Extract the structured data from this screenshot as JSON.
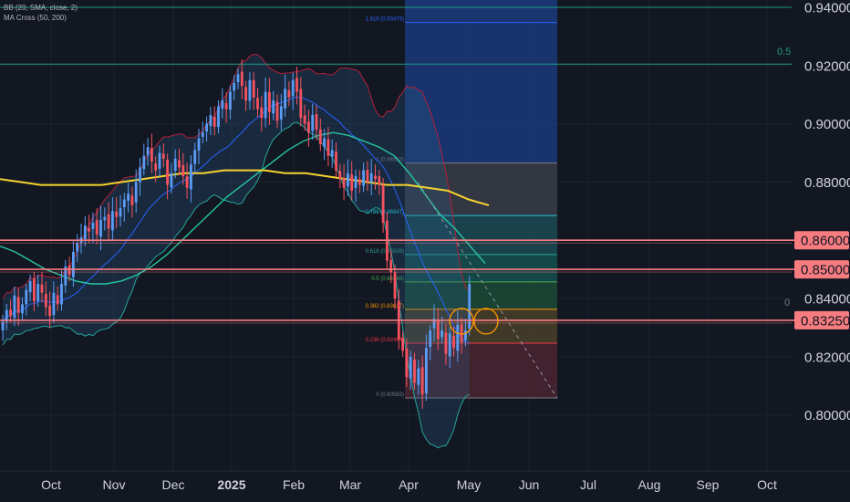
{
  "indicators": {
    "bb_label": "BB (20, SMA, close, 2)",
    "ma_label": "MA Cross (50, 200)"
  },
  "colors": {
    "background": "#131722",
    "grid": "#1e222d",
    "candle_up": "#5b9cf6",
    "candle_down": "#f7525f",
    "bb_fill": "#2b5f8a",
    "bb_upper": "#b2203a",
    "bb_lower": "#26a69a",
    "bb_basis": "#2962ff",
    "ma50": "#26c6a0",
    "ma200": "#f5d32f",
    "level_line": "#f77c80",
    "level_label_bg": "#f77c80",
    "level_label_text": "#131722",
    "axis_text": "#d1d4dc",
    "green_line": "#1f9a7e"
  },
  "chart_data": {
    "type": "candlestick",
    "y_axis": {
      "ticks": [
        "0.94000",
        "0.92000",
        "0.90000",
        "0.88000",
        "0.86000",
        "0.85000",
        "0.84000",
        "0.83250",
        "0.82000",
        "0.80000"
      ],
      "range": [
        0.7855,
        0.9415
      ]
    },
    "x_axis": {
      "ticks": [
        "Oct",
        "Nov",
        "Dec",
        "2025",
        "Feb",
        "Mar",
        "Apr",
        "May",
        "Jun",
        "Jul",
        "Aug",
        "Sep",
        "Oct"
      ]
    },
    "horizontal_levels": [
      {
        "value": 0.94,
        "label": "",
        "style": "green"
      },
      {
        "value": 0.9205,
        "label": "0.5",
        "style": "green"
      },
      {
        "value": 0.86,
        "label": "0.86000",
        "style": "red"
      },
      {
        "value": 0.85,
        "label": "0.85000",
        "style": "red"
      },
      {
        "value": 0.8325,
        "label": "0.83250",
        "style": "red"
      }
    ],
    "side_label": "0",
    "fibonacci": [
      {
        "label": "1.618 (0.93479)",
        "value": 0.93479,
        "color": "#2962ff"
      },
      {
        "label": "1 (0.88653)",
        "value": 0.88653,
        "color": "#787b86"
      },
      {
        "label": "0.786 (0.86847)",
        "value": 0.86847,
        "color": "#26c6da"
      },
      {
        "label": "0.618 (0.85508)",
        "value": 0.85508,
        "color": "#26a69a"
      },
      {
        "label": "0.5 (0.84568)",
        "value": 0.84568,
        "color": "#4caf50"
      },
      {
        "label": "0.382 (0.83627)",
        "value": 0.83627,
        "color": "#ff9800"
      },
      {
        "label": "0.236 (0.82464)",
        "value": 0.82464,
        "color": "#f23645"
      },
      {
        "label": "0 (0.80583)",
        "value": 0.80583,
        "color": "#787b86"
      }
    ],
    "fib_levels_in_order": [
      1.618,
      1,
      0.786,
      0.618,
      0.5,
      0.382,
      0.236,
      0
    ],
    "series": [
      {
        "name": "Price",
        "close": [
          0.832,
          0.836,
          0.834,
          0.841,
          0.835,
          0.838,
          0.843,
          0.846,
          0.839,
          0.845,
          0.842,
          0.837,
          0.834,
          0.842,
          0.838,
          0.845,
          0.851,
          0.848,
          0.856,
          0.859,
          0.861,
          0.865,
          0.863,
          0.866,
          0.862,
          0.867,
          0.868,
          0.864,
          0.87,
          0.868,
          0.871,
          0.874,
          0.876,
          0.872,
          0.88,
          0.885,
          0.889,
          0.892,
          0.887,
          0.884,
          0.89,
          0.888,
          0.879,
          0.883,
          0.888,
          0.885,
          0.882,
          0.878,
          0.886,
          0.891,
          0.895,
          0.897,
          0.9,
          0.903,
          0.899,
          0.906,
          0.908,
          0.905,
          0.911,
          0.914,
          0.917,
          0.913,
          0.908,
          0.915,
          0.909,
          0.905,
          0.902,
          0.911,
          0.904,
          0.908,
          0.901,
          0.906,
          0.912,
          0.909,
          0.915,
          0.911,
          0.902,
          0.9,
          0.897,
          0.903,
          0.898,
          0.893,
          0.895,
          0.889,
          0.891,
          0.884,
          0.881,
          0.878,
          0.883,
          0.877,
          0.882,
          0.879,
          0.884,
          0.88,
          0.883,
          0.881,
          0.879,
          0.866,
          0.853,
          0.849,
          0.84,
          0.826,
          0.822,
          0.813,
          0.82,
          0.811,
          0.816,
          0.807,
          0.823,
          0.829,
          0.833,
          0.826,
          0.829,
          0.821,
          0.828,
          0.823,
          0.831,
          0.825,
          0.829,
          0.845
        ]
      },
      {
        "name": "MA 50",
        "values": [
          0.858,
          0.856,
          0.853,
          0.85,
          0.848,
          0.846,
          0.845,
          0.845,
          0.846,
          0.848,
          0.851,
          0.855,
          0.86,
          0.865,
          0.87,
          0.875,
          0.879,
          0.883,
          0.887,
          0.891,
          0.894,
          0.896,
          0.897,
          0.896,
          0.894,
          0.892,
          0.889,
          0.883,
          0.876,
          0.869,
          0.864,
          0.858,
          0.852
        ]
      },
      {
        "name": "MA 200",
        "values": [
          0.881,
          0.88,
          0.879,
          0.879,
          0.879,
          0.879,
          0.88,
          0.881,
          0.882,
          0.883,
          0.883,
          0.884,
          0.884,
          0.884,
          0.883,
          0.883,
          0.882,
          0.881,
          0.88,
          0.879,
          0.879,
          0.878,
          0.877,
          0.874,
          0.872
        ]
      }
    ]
  }
}
